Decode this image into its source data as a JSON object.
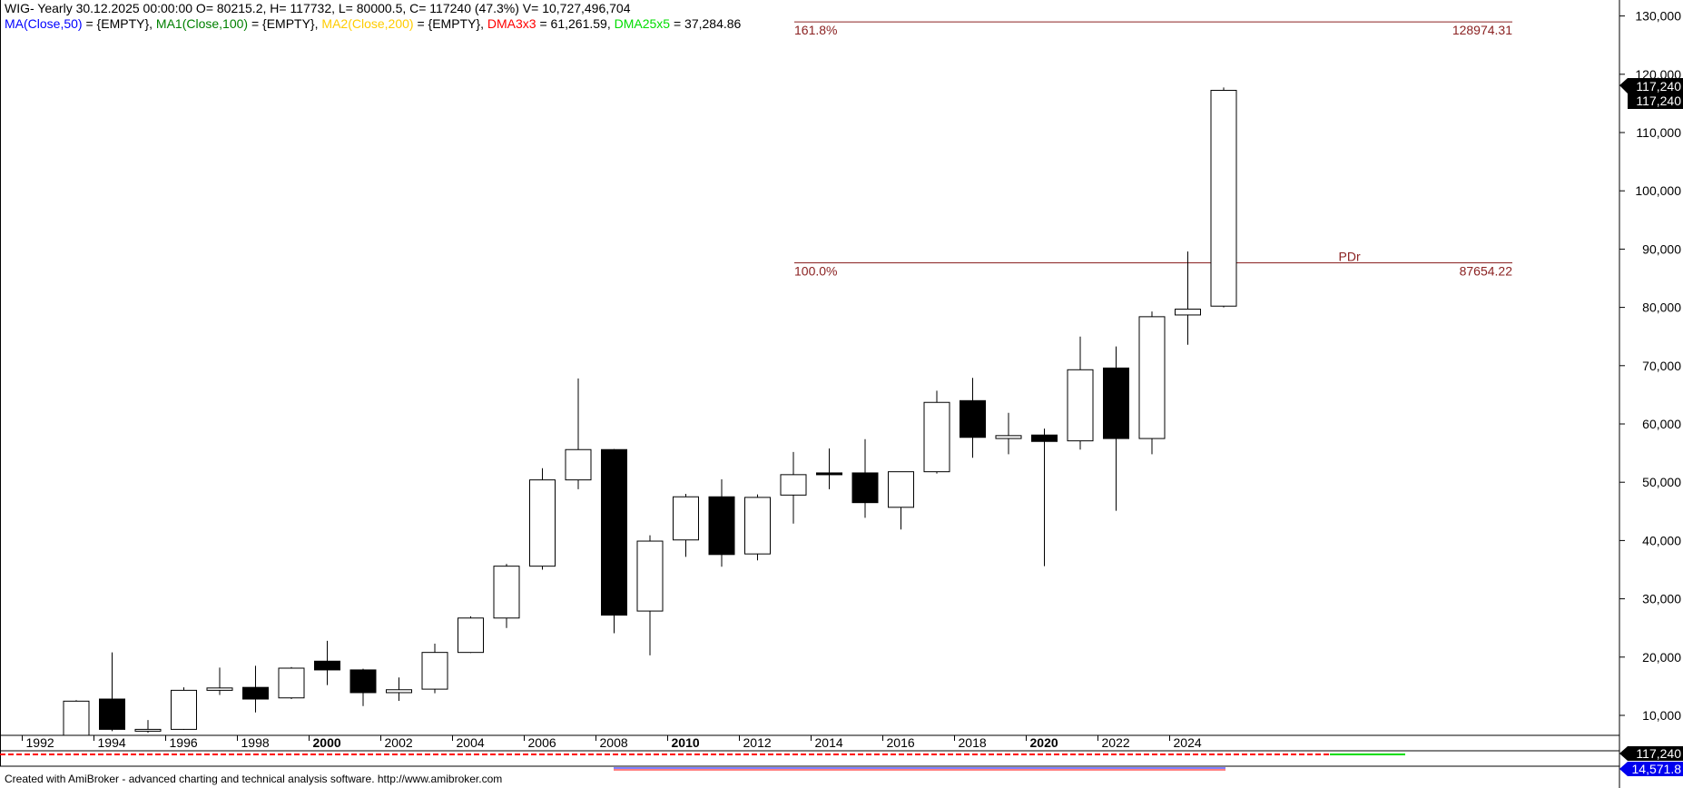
{
  "header": {
    "line1": "WIG- Yearly 30.12.2025 00:00:00 O= 80215.2, H= 117732, L= 80000.5, C= 117240 (47.3%) V= 10,727,496,704",
    "ma_items": [
      {
        "label": "MA(Close,50)",
        "value": " = {EMPTY}, ",
        "color": "#0000ff"
      },
      {
        "label": "MA1(Close,100)",
        "value": " = {EMPTY}, ",
        "color": "#008000"
      },
      {
        "label": "MA2(Close,200)",
        "value": " = {EMPTY}, ",
        "color": "#ffcc00"
      },
      {
        "label": "DMA3x3",
        "value": " = 61,261.59, ",
        "color": "#ff0000"
      },
      {
        "label": "DMA25x5",
        "value": " = 37,284.86",
        "color": "#00dd00"
      }
    ]
  },
  "footer": {
    "text": "Created with AmiBroker - advanced charting and technical analysis software. http://www.amibroker.com"
  },
  "price_tags": {
    "upper1": "117,240",
    "upper2": "117,240",
    "lower1": "117,240",
    "lower2": "14,571.8"
  },
  "colors": {
    "fib_line": "#8b2222",
    "bear_body": "#000000",
    "bull_body": "#ffffff"
  },
  "chart_data": {
    "type": "candlestick",
    "title": "WIG- Yearly",
    "ylim": [
      5000,
      132000
    ],
    "y_ticks": [
      10000,
      20000,
      30000,
      40000,
      50000,
      60000,
      70000,
      80000,
      90000,
      100000,
      110000,
      120000,
      130000
    ],
    "y_tick_labels": [
      "10,000",
      "20,000",
      "30,000",
      "40,000",
      "50,000",
      "60,000",
      "70,000",
      "80,000",
      "90,000",
      "100,000",
      "110,000",
      "120,000",
      "130,000"
    ],
    "x_labels": [
      {
        "year": 1992,
        "label": "1992",
        "bold": false
      },
      {
        "year": 1994,
        "label": "1994",
        "bold": false
      },
      {
        "year": 1996,
        "label": "1996",
        "bold": false
      },
      {
        "year": 1998,
        "label": "1998",
        "bold": false
      },
      {
        "year": 2000,
        "label": "2000",
        "bold": true
      },
      {
        "year": 2002,
        "label": "2002",
        "bold": false
      },
      {
        "year": 2004,
        "label": "2004",
        "bold": false
      },
      {
        "year": 2006,
        "label": "2006",
        "bold": false
      },
      {
        "year": 2008,
        "label": "2008",
        "bold": false
      },
      {
        "year": 2010,
        "label": "2010",
        "bold": true
      },
      {
        "year": 2012,
        "label": "2012",
        "bold": false
      },
      {
        "year": 2014,
        "label": "2014",
        "bold": false
      },
      {
        "year": 2016,
        "label": "2016",
        "bold": false
      },
      {
        "year": 2018,
        "label": "2018",
        "bold": false
      },
      {
        "year": 2020,
        "label": "2020",
        "bold": true
      },
      {
        "year": 2022,
        "label": "2022",
        "bold": false
      },
      {
        "year": 2024,
        "label": "2024",
        "bold": false
      }
    ],
    "candles": [
      {
        "year": 1993,
        "open": 5000,
        "high": 12600,
        "low": 5000,
        "close": 12440
      },
      {
        "year": 1994,
        "open": 12800,
        "high": 20800,
        "low": 7300,
        "close": 7600
      },
      {
        "year": 1995,
        "open": 7400,
        "high": 9200,
        "low": 7000,
        "close": 7600
      },
      {
        "year": 1996,
        "open": 7600,
        "high": 14800,
        "low": 7500,
        "close": 14300
      },
      {
        "year": 1997,
        "open": 14300,
        "high": 18200,
        "low": 13500,
        "close": 14700
      },
      {
        "year": 1998,
        "open": 14800,
        "high": 18500,
        "low": 10500,
        "close": 12800
      },
      {
        "year": 1999,
        "open": 13000,
        "high": 18300,
        "low": 12800,
        "close": 18100
      },
      {
        "year": 2000,
        "open": 19300,
        "high": 22800,
        "low": 15200,
        "close": 17800
      },
      {
        "year": 2001,
        "open": 17800,
        "high": 18000,
        "low": 11600,
        "close": 13900
      },
      {
        "year": 2002,
        "open": 13900,
        "high": 16500,
        "low": 12500,
        "close": 14400
      },
      {
        "year": 2003,
        "open": 14500,
        "high": 22300,
        "low": 13800,
        "close": 20800
      },
      {
        "year": 2004,
        "open": 20800,
        "high": 27000,
        "low": 20700,
        "close": 26700
      },
      {
        "year": 2005,
        "open": 26700,
        "high": 36000,
        "low": 25000,
        "close": 35600
      },
      {
        "year": 2006,
        "open": 35600,
        "high": 52400,
        "low": 35000,
        "close": 50400
      },
      {
        "year": 2007,
        "open": 50400,
        "high": 67800,
        "low": 48800,
        "close": 55600
      },
      {
        "year": 2008,
        "open": 55600,
        "high": 55700,
        "low": 24100,
        "close": 27200
      },
      {
        "year": 2009,
        "open": 27900,
        "high": 40900,
        "low": 20300,
        "close": 39900
      },
      {
        "year": 2010,
        "open": 40100,
        "high": 48000,
        "low": 37200,
        "close": 47500
      },
      {
        "year": 2011,
        "open": 47500,
        "high": 50500,
        "low": 35500,
        "close": 37600
      },
      {
        "year": 2012,
        "open": 37700,
        "high": 47900,
        "low": 36600,
        "close": 47400
      },
      {
        "year": 2013,
        "open": 47800,
        "high": 55200,
        "low": 42900,
        "close": 51300
      },
      {
        "year": 2014,
        "open": 51600,
        "high": 55800,
        "low": 48800,
        "close": 51400
      },
      {
        "year": 2015,
        "open": 51600,
        "high": 57400,
        "low": 43900,
        "close": 46500
      },
      {
        "year": 2016,
        "open": 45700,
        "high": 51700,
        "low": 41900,
        "close": 51800
      },
      {
        "year": 2017,
        "open": 51800,
        "high": 65700,
        "low": 51500,
        "close": 63700
      },
      {
        "year": 2018,
        "open": 64000,
        "high": 67900,
        "low": 54200,
        "close": 57700
      },
      {
        "year": 2019,
        "open": 57500,
        "high": 61900,
        "low": 54800,
        "close": 58000
      },
      {
        "year": 2020,
        "open": 58100,
        "high": 59200,
        "low": 35600,
        "close": 57000
      },
      {
        "year": 2021,
        "open": 57100,
        "high": 75000,
        "low": 55600,
        "close": 69300
      },
      {
        "year": 2022,
        "open": 69600,
        "high": 73300,
        "low": 45100,
        "close": 57500
      },
      {
        "year": 2023,
        "open": 57500,
        "high": 79300,
        "low": 54800,
        "close": 78400
      },
      {
        "year": 2024,
        "open": 78700,
        "high": 89600,
        "low": 73600,
        "close": 79700
      },
      {
        "year": 2025,
        "open": 80215.2,
        "high": 117732,
        "low": 80000.5,
        "close": 117240
      }
    ],
    "fibonacci": [
      {
        "label": "161.8%",
        "value": 128974.31,
        "value_label": "128974.31"
      },
      {
        "label": "100.0%",
        "value": 87654.22,
        "value_label": "87654.22"
      }
    ],
    "annotation": {
      "text": "PDr",
      "year": 2028,
      "value": 87654.22
    }
  }
}
